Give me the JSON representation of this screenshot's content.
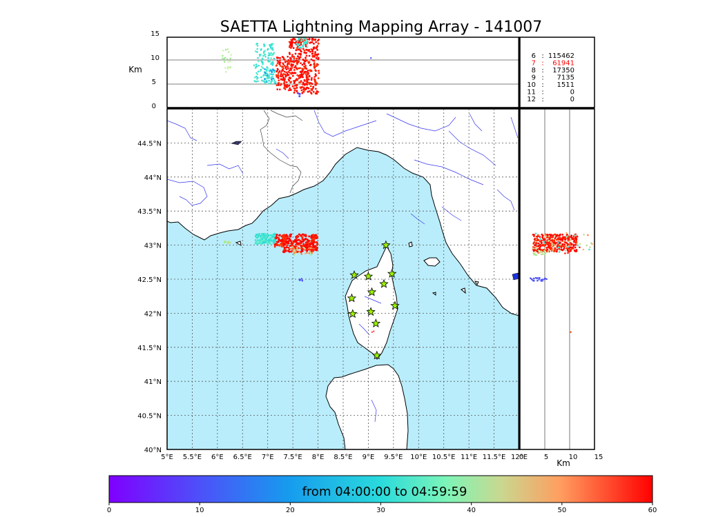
{
  "title": "SAETTA Lightning Mapping Array - 141007",
  "colors": {
    "sea": "#b9edfb",
    "land": "#ffffff",
    "river": "#3333ee",
    "border": "#444444",
    "grid": "#555555"
  },
  "altitude_axis": {
    "label": "Km",
    "ticks": [
      "0",
      "5",
      "10",
      "15"
    ],
    "range": [
      0,
      15
    ]
  },
  "lon_ticks": [
    "5°E",
    "5.5°E",
    "6°E",
    "6.5°E",
    "7°E",
    "7.5°E",
    "8°E",
    "8.5°E",
    "9°E",
    "9.5°E",
    "10°E",
    "10.5°E",
    "11°E",
    "11.5°E",
    "12°E"
  ],
  "lat_ticks": [
    "40°N",
    "40.5°N",
    "41°N",
    "41.5°N",
    "42°N",
    "42.5°N",
    "43°N",
    "43.5°N",
    "44°N",
    "44.5°N"
  ],
  "lon_range": [
    5,
    12
  ],
  "lat_range": [
    40,
    45
  ],
  "station_counts": [
    {
      "station": "6",
      "sep": ":",
      "count": "115462",
      "highlight": false
    },
    {
      "station": "7",
      "sep": ":",
      "count": "61941",
      "highlight": true
    },
    {
      "station": "8",
      "sep": ":",
      "count": "17350",
      "highlight": false
    },
    {
      "station": "9",
      "sep": ":",
      "count": "7135",
      "highlight": false
    },
    {
      "station": "10",
      "sep": ":",
      "count": "1511",
      "highlight": false
    },
    {
      "station": "11",
      "sep": ":",
      "count": "0",
      "highlight": false
    },
    {
      "station": "12",
      "sep": ":",
      "count": "0",
      "highlight": false
    }
  ],
  "stations": [
    {
      "lon": 9.35,
      "lat": 43.0
    },
    {
      "lon": 8.72,
      "lat": 42.56
    },
    {
      "lon": 9.0,
      "lat": 42.54
    },
    {
      "lon": 9.47,
      "lat": 42.58
    },
    {
      "lon": 9.31,
      "lat": 42.43
    },
    {
      "lon": 9.07,
      "lat": 42.31
    },
    {
      "lon": 8.67,
      "lat": 42.22
    },
    {
      "lon": 9.53,
      "lat": 42.11
    },
    {
      "lon": 9.05,
      "lat": 42.02
    },
    {
      "lon": 8.69,
      "lat": 41.99
    },
    {
      "lon": 9.15,
      "lat": 41.85
    },
    {
      "lon": 9.17,
      "lat": 41.38
    }
  ],
  "colorbar": {
    "label": "from 04:00:00 to 04:59:59",
    "ticks": [
      "0",
      "10",
      "20",
      "30",
      "40",
      "50",
      "60"
    ],
    "range": [
      0,
      60
    ]
  }
}
